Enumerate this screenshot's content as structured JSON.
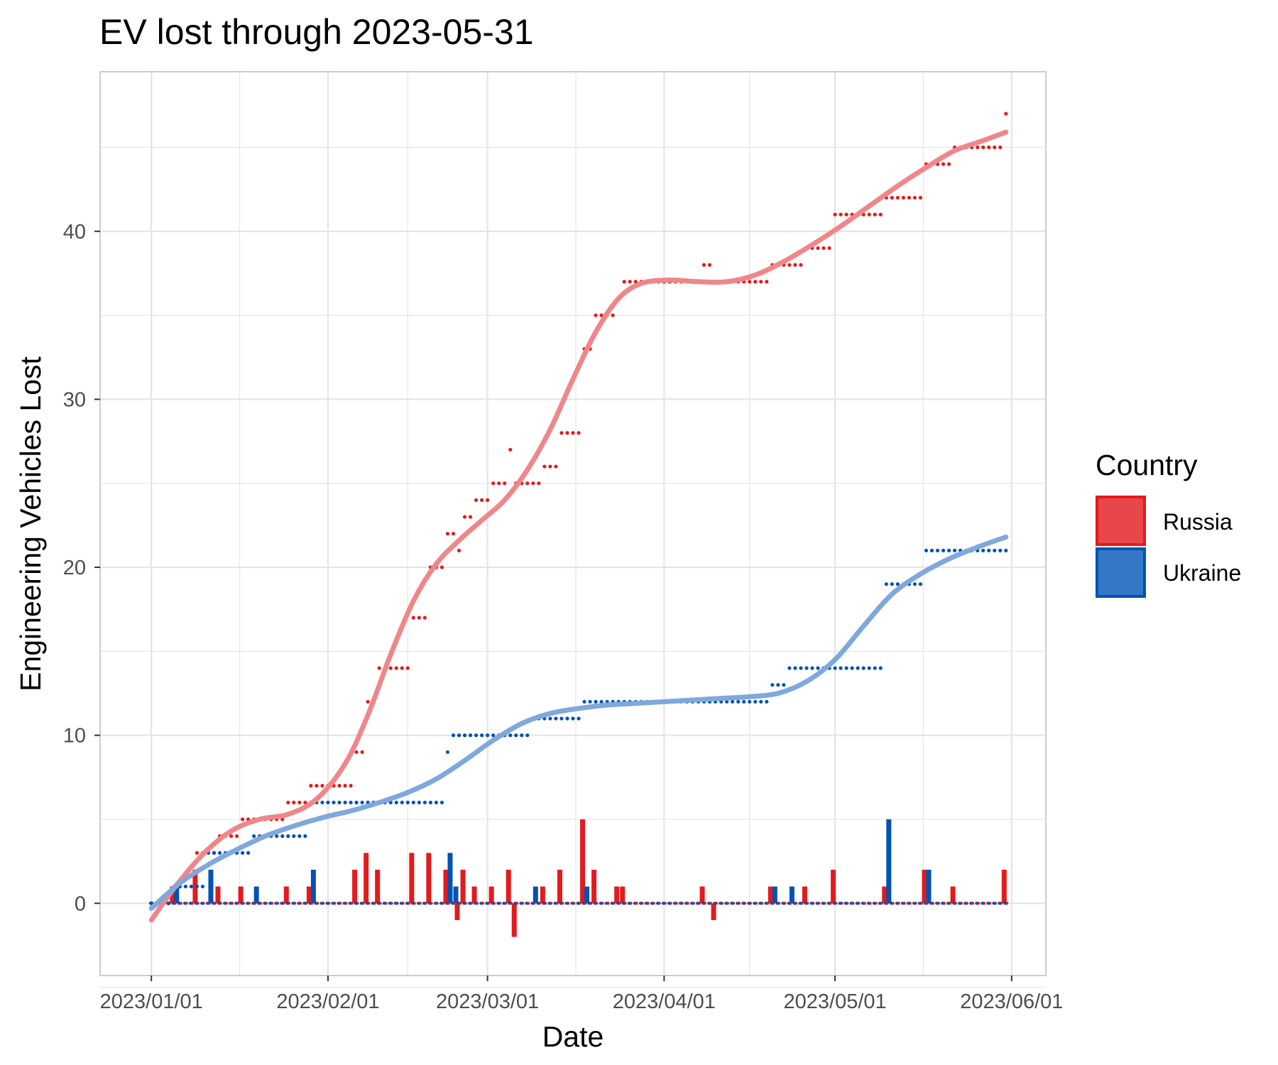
{
  "colors": {
    "russia": "#e41a1c",
    "russia_fill": "#e8474a",
    "ukraine": "#0053b3",
    "ukraine_fill": "#3377c6",
    "grid": "#e5e5e5",
    "panel_border": "#cccccc"
  },
  "chart_data": {
    "type": "line",
    "title": "EV lost through 2023-05-31",
    "xlabel": "Date",
    "ylabel": "Engineering Vehicles Lost",
    "xlim": [
      "2022-12-23",
      "2023-06-07"
    ],
    "ylim": [
      -4.3,
      49.5
    ],
    "x_tick_labels": [
      "2023/01/01",
      "2023/02/01",
      "2023/03/01",
      "2023/04/01",
      "2023/05/01",
      "2023/06/01"
    ],
    "x_ticks": [
      "2023-01-01",
      "2023-02-01",
      "2023-03-01",
      "2023-04-01",
      "2023-05-01",
      "2023-06-01"
    ],
    "y_ticks": [
      0,
      10,
      20,
      30,
      40
    ],
    "y_tick_labels": [
      "0",
      "10",
      "20",
      "30",
      "40"
    ],
    "grid": true,
    "legend": {
      "title": "Country",
      "position": "right",
      "entries": [
        "Russia",
        "Ukraine"
      ]
    },
    "series": [
      {
        "name": "Russia",
        "cumulative": [
          [
            "2023-01-01",
            0
          ],
          [
            "2023-01-05",
            1
          ],
          [
            "2023-01-09",
            3
          ],
          [
            "2023-01-13",
            4
          ],
          [
            "2023-01-17",
            5
          ],
          [
            "2023-01-25",
            6
          ],
          [
            "2023-01-29",
            7
          ],
          [
            "2023-02-06",
            9
          ],
          [
            "2023-02-08",
            12
          ],
          [
            "2023-02-10",
            14
          ],
          [
            "2023-02-16",
            17
          ],
          [
            "2023-02-19",
            20
          ],
          [
            "2023-02-22",
            22
          ],
          [
            "2023-02-24",
            21
          ],
          [
            "2023-02-25",
            23
          ],
          [
            "2023-02-27",
            24
          ],
          [
            "2023-03-02",
            25
          ],
          [
            "2023-03-05",
            27
          ],
          [
            "2023-03-06",
            25
          ],
          [
            "2023-03-11",
            26
          ],
          [
            "2023-03-14",
            28
          ],
          [
            "2023-03-18",
            33
          ],
          [
            "2023-03-20",
            35
          ],
          [
            "2023-03-24",
            36
          ],
          [
            "2023-03-25",
            37
          ],
          [
            "2023-04-08",
            38
          ],
          [
            "2023-04-10",
            37
          ],
          [
            "2023-04-20",
            38
          ],
          [
            "2023-04-26",
            39
          ],
          [
            "2023-05-01",
            41
          ],
          [
            "2023-05-10",
            42
          ],
          [
            "2023-05-17",
            44
          ],
          [
            "2023-05-22",
            45
          ],
          [
            "2023-05-31",
            47
          ]
        ],
        "daily": [
          [
            "2023-01-05",
            1
          ],
          [
            "2023-01-09",
            2
          ],
          [
            "2023-01-13",
            1
          ],
          [
            "2023-01-17",
            1
          ],
          [
            "2023-01-25",
            1
          ],
          [
            "2023-01-29",
            1
          ],
          [
            "2023-02-06",
            2
          ],
          [
            "2023-02-08",
            3
          ],
          [
            "2023-02-10",
            2
          ],
          [
            "2023-02-16",
            3
          ],
          [
            "2023-02-19",
            3
          ],
          [
            "2023-02-22",
            2
          ],
          [
            "2023-02-24",
            -1
          ],
          [
            "2023-02-25",
            2
          ],
          [
            "2023-02-27",
            1
          ],
          [
            "2023-03-02",
            1
          ],
          [
            "2023-03-05",
            2
          ],
          [
            "2023-03-06",
            -2
          ],
          [
            "2023-03-11",
            1
          ],
          [
            "2023-03-14",
            2
          ],
          [
            "2023-03-18",
            5
          ],
          [
            "2023-03-20",
            2
          ],
          [
            "2023-03-24",
            1
          ],
          [
            "2023-03-25",
            1
          ],
          [
            "2023-04-08",
            1
          ],
          [
            "2023-04-10",
            -1
          ],
          [
            "2023-04-20",
            1
          ],
          [
            "2023-04-26",
            1
          ],
          [
            "2023-05-01",
            2
          ],
          [
            "2023-05-10",
            1
          ],
          [
            "2023-05-17",
            2
          ],
          [
            "2023-05-22",
            1
          ],
          [
            "2023-05-31",
            2
          ]
        ],
        "trend": [
          [
            "2023-01-01",
            -1
          ],
          [
            "2023-01-05",
            0.9
          ],
          [
            "2023-01-10",
            2.9
          ],
          [
            "2023-01-15",
            4.3
          ],
          [
            "2023-01-20",
            5.0
          ],
          [
            "2023-01-25",
            5.3
          ],
          [
            "2023-01-30",
            6.2
          ],
          [
            "2023-02-04",
            8.3
          ],
          [
            "2023-02-08",
            11.2
          ],
          [
            "2023-02-12",
            14.8
          ],
          [
            "2023-02-16",
            18.0
          ],
          [
            "2023-02-20",
            20.2
          ],
          [
            "2023-02-24",
            21.6
          ],
          [
            "2023-02-28",
            22.8
          ],
          [
            "2023-03-04",
            24.0
          ],
          [
            "2023-03-08",
            25.8
          ],
          [
            "2023-03-12",
            28.2
          ],
          [
            "2023-03-16",
            31.2
          ],
          [
            "2023-03-20",
            34.0
          ],
          [
            "2023-03-24",
            36.0
          ],
          [
            "2023-03-28",
            36.9
          ],
          [
            "2023-04-02",
            37.1
          ],
          [
            "2023-04-07",
            37.0
          ],
          [
            "2023-04-12",
            37.0
          ],
          [
            "2023-04-17",
            37.4
          ],
          [
            "2023-04-22",
            38.2
          ],
          [
            "2023-04-27",
            39.2
          ],
          [
            "2023-05-02",
            40.3
          ],
          [
            "2023-05-07",
            41.5
          ],
          [
            "2023-05-12",
            42.7
          ],
          [
            "2023-05-17",
            43.8
          ],
          [
            "2023-05-22",
            44.8
          ],
          [
            "2023-05-27",
            45.4
          ],
          [
            "2023-05-31",
            45.9
          ]
        ]
      },
      {
        "name": "Ukraine",
        "cumulative": [
          [
            "2023-01-01",
            0
          ],
          [
            "2023-01-05",
            1
          ],
          [
            "2023-01-11",
            3
          ],
          [
            "2023-01-19",
            4
          ],
          [
            "2023-01-29",
            6
          ],
          [
            "2023-02-22",
            9
          ],
          [
            "2023-02-23",
            10
          ],
          [
            "2023-03-09",
            11
          ],
          [
            "2023-03-18",
            12
          ],
          [
            "2023-04-20",
            13
          ],
          [
            "2023-04-23",
            14
          ],
          [
            "2023-05-10",
            19
          ],
          [
            "2023-05-17",
            21
          ]
        ],
        "daily": [
          [
            "2023-01-05",
            1
          ],
          [
            "2023-01-11",
            2
          ],
          [
            "2023-01-19",
            1
          ],
          [
            "2023-01-29",
            2
          ],
          [
            "2023-02-22",
            3
          ],
          [
            "2023-02-23",
            1
          ],
          [
            "2023-03-09",
            1
          ],
          [
            "2023-03-18",
            1
          ],
          [
            "2023-04-20",
            1
          ],
          [
            "2023-04-23",
            1
          ],
          [
            "2023-05-10",
            5
          ],
          [
            "2023-05-17",
            2
          ]
        ],
        "trend": [
          [
            "2023-01-01",
            -0.3
          ],
          [
            "2023-01-06",
            1.2
          ],
          [
            "2023-01-11",
            2.3
          ],
          [
            "2023-01-16",
            3.2
          ],
          [
            "2023-01-21",
            4.0
          ],
          [
            "2023-01-26",
            4.6
          ],
          [
            "2023-01-31",
            5.1
          ],
          [
            "2023-02-05",
            5.5
          ],
          [
            "2023-02-10",
            6.0
          ],
          [
            "2023-02-15",
            6.6
          ],
          [
            "2023-02-20",
            7.4
          ],
          [
            "2023-02-25",
            8.5
          ],
          [
            "2023-03-02",
            9.7
          ],
          [
            "2023-03-07",
            10.7
          ],
          [
            "2023-03-12",
            11.3
          ],
          [
            "2023-03-17",
            11.6
          ],
          [
            "2023-03-22",
            11.8
          ],
          [
            "2023-03-27",
            11.9
          ],
          [
            "2023-04-01",
            12.0
          ],
          [
            "2023-04-06",
            12.1
          ],
          [
            "2023-04-11",
            12.2
          ],
          [
            "2023-04-16",
            12.3
          ],
          [
            "2023-04-21",
            12.5
          ],
          [
            "2023-04-26",
            13.2
          ],
          [
            "2023-05-01",
            14.5
          ],
          [
            "2023-05-06",
            16.5
          ],
          [
            "2023-05-11",
            18.4
          ],
          [
            "2023-05-16",
            19.6
          ],
          [
            "2023-05-21",
            20.5
          ],
          [
            "2023-05-26",
            21.2
          ],
          [
            "2023-05-31",
            21.8
          ]
        ]
      }
    ]
  }
}
